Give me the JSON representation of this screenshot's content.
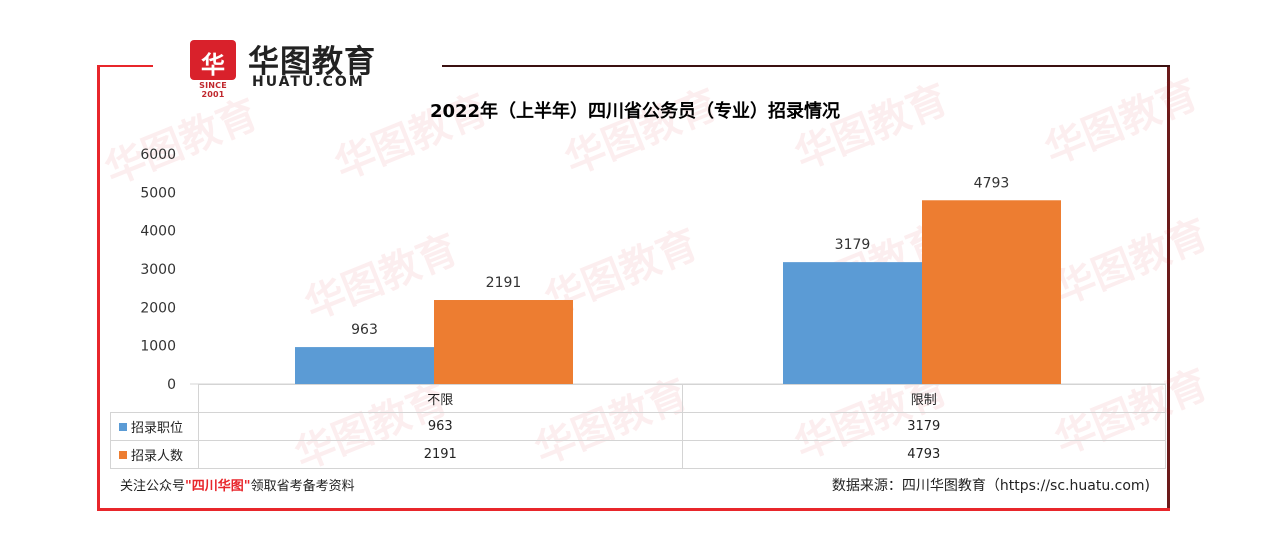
{
  "brand": {
    "mark": "华",
    "since": "SINCE 2001",
    "name_cn": "华图教育",
    "name_en": "HUATU.COM",
    "accent": "#d9212b"
  },
  "chart_data": {
    "type": "bar",
    "title": "2022年（上半年）四川省公务员（专业）招录情况",
    "categories": [
      "不限",
      "限制"
    ],
    "series": [
      {
        "name": "招录职位",
        "values": [
          963,
          3179
        ],
        "color": "#5b9bd5"
      },
      {
        "name": "招录人数",
        "values": [
          2191,
          4793
        ],
        "color": "#ed7d31"
      }
    ],
    "ylim": [
      0,
      6000
    ],
    "yticks": [
      0,
      1000,
      2000,
      3000,
      4000,
      5000,
      6000
    ],
    "grid": false,
    "legend": "data-table"
  },
  "footer": {
    "follow_prefix": "关注公众号",
    "follow_name": "\"四川华图\"",
    "follow_suffix": "领取省考备考资料",
    "source": "数据来源：四川华图教育（https://sc.huatu.com)"
  }
}
